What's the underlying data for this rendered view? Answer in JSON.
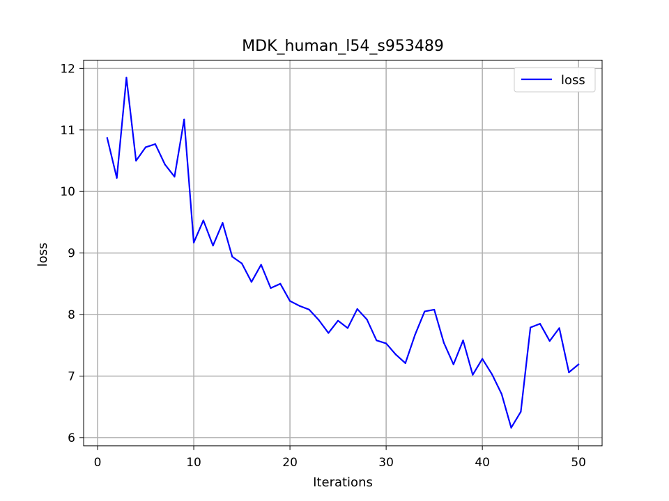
{
  "chart_data": {
    "type": "line",
    "title": "MDK_human_l54_s953489",
    "xlabel": "Iterations",
    "ylabel": "loss",
    "xlim": [
      -1.45,
      52.45
    ],
    "ylim": [
      5.865,
      12.135
    ],
    "xticks": [
      0,
      10,
      20,
      30,
      40,
      50
    ],
    "yticks": [
      6,
      7,
      8,
      9,
      10,
      11,
      12
    ],
    "xtick_labels": [
      "0",
      "10",
      "20",
      "30",
      "40",
      "50"
    ],
    "ytick_labels": [
      "6",
      "7",
      "8",
      "9",
      "10",
      "11",
      "12"
    ],
    "grid": true,
    "legend_position": "top-right",
    "x": [
      1,
      2,
      3,
      4,
      5,
      6,
      7,
      8,
      9,
      10,
      11,
      12,
      13,
      14,
      15,
      16,
      17,
      18,
      19,
      20,
      21,
      22,
      23,
      24,
      25,
      26,
      27,
      28,
      29,
      30,
      31,
      32,
      33,
      34,
      35,
      36,
      37,
      38,
      39,
      40,
      41,
      42,
      43,
      44,
      45,
      46,
      47,
      48,
      49,
      50
    ],
    "series": [
      {
        "name": "loss",
        "color": "#0000ff",
        "values": [
          10.87,
          10.22,
          11.85,
          10.5,
          10.72,
          10.77,
          10.44,
          10.24,
          11.17,
          9.17,
          9.53,
          9.12,
          9.49,
          8.94,
          8.83,
          8.53,
          8.81,
          8.43,
          8.5,
          8.22,
          8.14,
          8.08,
          7.91,
          7.7,
          7.9,
          7.78,
          8.09,
          7.92,
          7.58,
          7.53,
          7.35,
          7.21,
          7.67,
          8.05,
          8.08,
          7.54,
          7.19,
          7.58,
          7.02,
          7.28,
          7.03,
          6.71,
          6.16,
          6.42,
          7.79,
          7.85,
          7.57,
          7.78,
          7.06,
          7.19
        ]
      }
    ]
  }
}
